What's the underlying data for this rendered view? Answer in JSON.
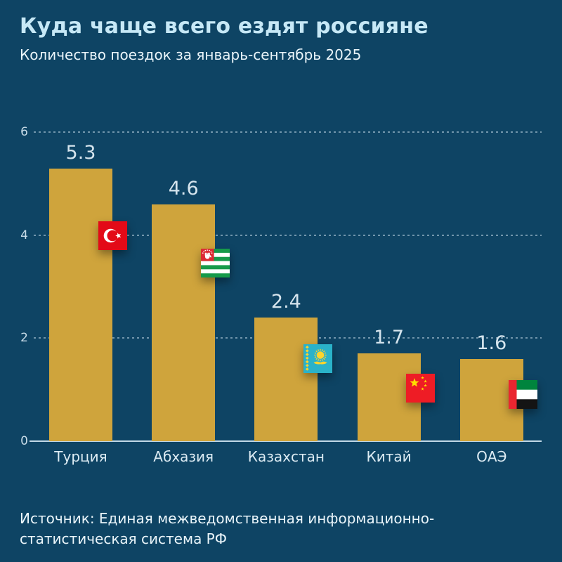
{
  "header": {
    "title": "Куда чаще всего ездят россияне",
    "subtitle": "Количество поездок за январь-сентябрь 2025"
  },
  "chart_data": {
    "type": "bar",
    "title": "Куда чаще всего ездят россияне",
    "subtitle": "Количество поездок за январь-сентябрь 2025",
    "categories": [
      "Турция",
      "Абхазия",
      "Казахстан",
      "Китай",
      "ОАЭ"
    ],
    "values": [
      5.3,
      4.6,
      2.4,
      1.7,
      1.6
    ],
    "value_labels": [
      "5.3",
      "4.6",
      "2.4",
      "1.7",
      "1.6"
    ],
    "flag_icons": [
      "turkey-flag-icon",
      "abkhazia-flag-icon",
      "kazakhstan-flag-icon",
      "china-flag-icon",
      "uae-flag-icon"
    ],
    "xlabel": "",
    "ylabel": "",
    "ylim": [
      0,
      6
    ],
    "yticks": [
      0,
      2,
      4,
      6
    ],
    "grid": "horizontal-dotted",
    "legend": "none",
    "source": "Источник: Единая межведомственная информационно-статистическая система РФ"
  },
  "footer": {
    "source_line1": "Источник: Единая межведомственная информационно-",
    "source_line2": "статистическая система РФ"
  },
  "colors": {
    "background": "#0e4464",
    "title": "#c6e8f6",
    "text": "#eaf5fa",
    "bar": "#cfa43c",
    "axis": "#c2d9e6",
    "grid_dots": "#c3dae7",
    "value_label": "#d5e4ed",
    "turkey_red": "#e30a17",
    "china_red": "#ee1c25",
    "abkhazia_green": "#169a4a",
    "abkhazia_canton": "#dc2b33",
    "kazakhstan_blue": "#2ab2c9",
    "kazakhstan_gold": "#fed42c",
    "uae_red": "#ea2630",
    "uae_green": "#00843d"
  }
}
